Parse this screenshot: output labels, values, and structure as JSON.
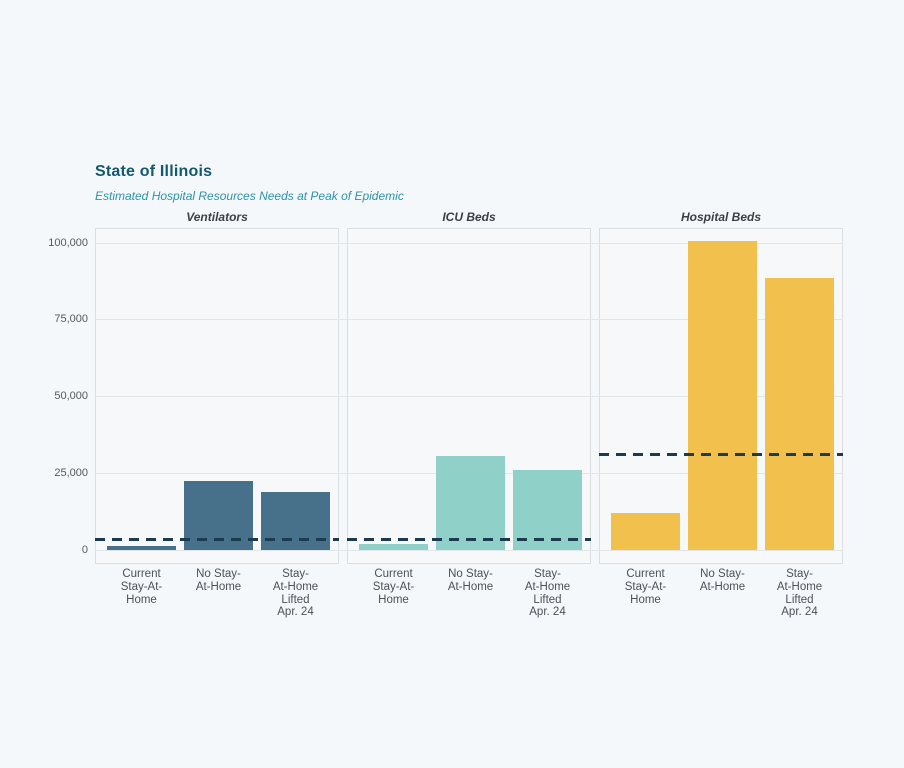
{
  "chart_data": {
    "type": "bar",
    "title": "State of Illinois",
    "subtitle": "Estimated Hospital Resources Needs at Peak of Epidemic",
    "categories": [
      "Current Stay-At-Home",
      "No Stay-At-Home",
      "Stay-At-Home Lifted Apr. 24"
    ],
    "category_display_lines": [
      [
        "Current",
        "Stay-At-",
        "Home"
      ],
      [
        "No Stay-",
        "At-Home"
      ],
      [
        "Stay-",
        "At-Home",
        "Lifted",
        "Apr. 24"
      ]
    ],
    "y_ticks": [
      0,
      25000,
      50000,
      75000,
      100000
    ],
    "y_tick_labels": [
      "0",
      "25,000",
      "50,000",
      "75,000",
      "100,000"
    ],
    "ylim": [
      0,
      104700
    ],
    "grid": "horizontal",
    "legend": "none",
    "panels": [
      {
        "label": "Ventilators",
        "bar_color": "#47708a",
        "values": [
          1200,
          22500,
          19000
        ],
        "capacity_line": 3500
      },
      {
        "label": "ICU Beds",
        "bar_color": "#8fd1c8",
        "values": [
          2000,
          30500,
          26000
        ],
        "capacity_line": 3400
      },
      {
        "label": "Hospital Beds",
        "bar_color": "#f2c04c",
        "values": [
          12000,
          100500,
          88500
        ],
        "capacity_line": 31000
      }
    ],
    "capacity_line_color": "#1d3b50",
    "capacity_line_style": "dashed"
  },
  "colors": {
    "page_background": "#f4f8fa",
    "panel_background": "#f7f8fa",
    "panel_border": "#dcdfe2",
    "gridline": "#e3e6e9",
    "title": "#14586f",
    "subtitle": "#2e93a9",
    "axis_text": "#565a5e"
  }
}
